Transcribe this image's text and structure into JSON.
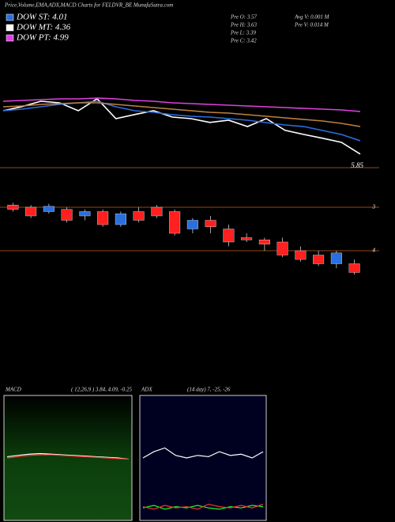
{
  "header": {
    "title": "Price,Volume,EMA,ADX,MACD Charts for FELDVR_BE MunafaSutra.com",
    "legend": [
      {
        "label": "DOW ST: 4.01",
        "color": "#2a6fe0"
      },
      {
        "label": "DOW MT: 4.36",
        "color": "#ffffff"
      },
      {
        "label": "DOW PT: 4.99",
        "color": "#e040e0"
      }
    ],
    "stats": [
      "Pre  O: 3.57",
      "Pre  H: 3.63",
      "Pre  L: 3.39",
      "Pre  C: 3.42",
      "Avg V: 0.001 M",
      "Pre  V: 0.014  M"
    ]
  },
  "chart_data": [
    {
      "type": "line",
      "ylim": [
        5.775,
        9.275
      ],
      "yticks": [
        5.85
      ],
      "grid": true,
      "series": [
        {
          "name": "Price",
          "color": "#ffffff",
          "values": [
            7.65,
            7.78,
            7.95,
            7.9,
            7.65,
            8.03,
            7.4,
            7.53,
            7.65,
            7.45,
            7.4,
            7.28,
            7.35,
            7.15,
            7.4,
            7.03,
            6.9,
            6.78,
            6.65,
            6.28
          ]
        },
        {
          "name": "EMA Short",
          "color": "#2a6fe0",
          "values": [
            7.65,
            7.7,
            7.775,
            7.85,
            7.9,
            7.95,
            7.775,
            7.65,
            7.6,
            7.525,
            7.475,
            7.45,
            7.4,
            7.35,
            7.275,
            7.2,
            7.15,
            7.025,
            6.9,
            6.7
          ]
        },
        {
          "name": "EMA Long",
          "color": "#e040e0",
          "values": [
            7.95,
            7.975,
            8,
            8.025,
            8.025,
            8.05,
            8.025,
            7.975,
            7.95,
            7.9,
            7.875,
            7.85,
            7.825,
            7.8,
            7.775,
            7.75,
            7.725,
            7.7,
            7.675,
            7.625
          ]
        },
        {
          "name": "EMA Mid",
          "color": "#c08040",
          "values": [
            7.775,
            7.8,
            7.85,
            7.875,
            7.9,
            7.9,
            7.85,
            7.8,
            7.75,
            7.7,
            7.65,
            7.6,
            7.575,
            7.525,
            7.475,
            7.425,
            7.375,
            7.325,
            7.25,
            7.15
          ]
        }
      ]
    },
    {
      "type": "candlestick",
      "ylim": [
        2.4,
        6.9
      ],
      "inverted": true,
      "yticks": [
        3,
        4
      ],
      "grid": true,
      "up_color": "#ff2020",
      "down_color": "#2a6fe0",
      "candles": [
        {
          "open": 2.95,
          "close": 3.05,
          "low": 2.9,
          "high": 3.1
        },
        {
          "open": 3.0,
          "close": 3.2,
          "low": 2.95,
          "high": 3.25
        },
        {
          "open": 3.1,
          "close": 2.98,
          "low": 2.92,
          "high": 3.15
        },
        {
          "open": 3.05,
          "close": 3.3,
          "low": 3.0,
          "high": 3.35
        },
        {
          "open": 3.2,
          "close": 3.1,
          "low": 3.05,
          "high": 3.3
        },
        {
          "open": 3.1,
          "close": 3.4,
          "low": 3.05,
          "high": 3.45
        },
        {
          "open": 3.4,
          "close": 3.15,
          "low": 3.1,
          "high": 3.45
        },
        {
          "open": 3.1,
          "close": 3.3,
          "low": 3.0,
          "high": 3.35
        },
        {
          "open": 3.0,
          "close": 3.2,
          "low": 2.95,
          "high": 3.25
        },
        {
          "open": 3.1,
          "close": 3.6,
          "low": 3.05,
          "high": 3.65
        },
        {
          "open": 3.5,
          "close": 3.3,
          "low": 3.25,
          "high": 3.6
        },
        {
          "open": 3.3,
          "close": 3.45,
          "low": 3.2,
          "high": 3.6
        },
        {
          "open": 3.5,
          "close": 3.8,
          "low": 3.4,
          "high": 3.9
        },
        {
          "open": 3.7,
          "close": 3.75,
          "low": 3.6,
          "high": 3.8
        },
        {
          "open": 3.75,
          "close": 3.85,
          "low": 3.7,
          "high": 4.0
        },
        {
          "open": 3.8,
          "close": 4.1,
          "low": 3.7,
          "high": 4.15
        },
        {
          "open": 4.0,
          "close": 4.2,
          "low": 3.9,
          "high": 4.25
        },
        {
          "open": 4.1,
          "close": 4.3,
          "low": 4.0,
          "high": 4.35
        },
        {
          "open": 4.3,
          "close": 4.05,
          "low": 4.0,
          "high": 4.4
        },
        {
          "open": 4.3,
          "close": 4.5,
          "low": 4.2,
          "high": 4.55
        }
      ]
    },
    {
      "type": "line",
      "title": "MACD",
      "subtitle": "( 12,26,9 ) 3.84, 4.09, -0.25",
      "ylim": [
        -5,
        5
      ],
      "series": [
        {
          "name": "MACD",
          "color": "#ffffff",
          "values": [
            0.1,
            0.2,
            0.3,
            0.35,
            0.3,
            0.25,
            0.2,
            0.15,
            0.1,
            0.05,
            0,
            -0.1
          ]
        },
        {
          "name": "Signal",
          "color": "#ff3030",
          "values": [
            0,
            0.1,
            0.2,
            0.25,
            0.25,
            0.2,
            0.15,
            0.1,
            0.05,
            0,
            -0.05,
            -0.1
          ]
        }
      ]
    },
    {
      "type": "line",
      "title": "ADX",
      "subtitle": "(14  day) 7, -25, -26",
      "ylim": [
        0,
        100
      ],
      "series": [
        {
          "name": "ADX",
          "color": "#ffffff",
          "values": [
            50,
            55,
            58,
            52,
            50,
            52,
            51,
            55,
            52,
            53,
            50,
            55
          ]
        },
        {
          "name": "+DI",
          "color": "#20ff20",
          "values": [
            10,
            12,
            9,
            11,
            10,
            12,
            10,
            9,
            11,
            10,
            12,
            11
          ]
        },
        {
          "name": "-DI",
          "color": "#ff3030",
          "values": [
            11,
            9,
            12,
            10,
            11,
            9,
            13,
            11,
            10,
            12,
            10,
            13
          ]
        }
      ]
    }
  ]
}
